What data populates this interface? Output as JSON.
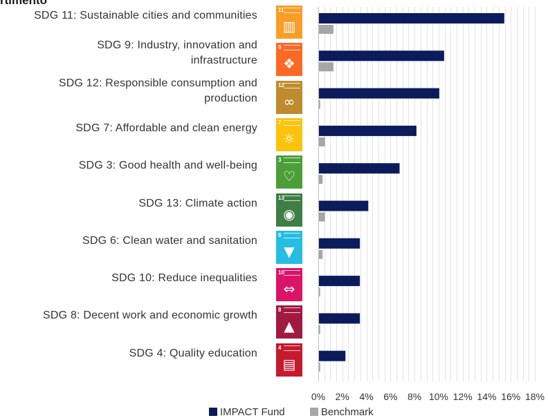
{
  "title": "rtimento",
  "chart_data": {
    "type": "bar",
    "orientation": "horizontal",
    "categories": [
      {
        "line1": "SDG 11: Sustainable cities and communities",
        "line2": ""
      },
      {
        "line1": "SDG 9: Industry, innovation and",
        "line2": "infrastructure"
      },
      {
        "line1": "SDG 12: Responsible consumption and",
        "line2": "production"
      },
      {
        "line1": "SDG 7: Affordable and clean energy",
        "line2": ""
      },
      {
        "line1": "SDG 3: Good health and well-being",
        "line2": ""
      },
      {
        "line1": "SDG 13: Climate action",
        "line2": ""
      },
      {
        "line1": "SDG 6: Clean water and sanitation",
        "line2": ""
      },
      {
        "line1": "SDG 10: Reduce inequalities",
        "line2": ""
      },
      {
        "line1": "SDG 8: Decent work and economic growth",
        "line2": ""
      },
      {
        "line1": "SDG 4: Quality education",
        "line2": ""
      }
    ],
    "series": [
      {
        "name": "IMPACT Fund",
        "color": "#0b1b5c",
        "values": [
          15.4,
          10.4,
          10.0,
          8.1,
          6.7,
          4.1,
          3.4,
          3.4,
          3.4,
          2.2
        ]
      },
      {
        "name": "Benchmark",
        "color": "#a6a6a6",
        "values": [
          1.2,
          1.2,
          0.1,
          0.5,
          0.3,
          0.5,
          0.3,
          0.1,
          0.1,
          0.1
        ]
      }
    ],
    "xlim": [
      0,
      18
    ],
    "x_ticks": [
      "0%",
      "2%",
      "4%",
      "6%",
      "8%",
      "10%",
      "12%",
      "14%",
      "16%",
      "18%"
    ],
    "grid": "vertical minor lines every 0.5%",
    "legend": "bottom"
  },
  "sdg_icons": [
    {
      "number": "11",
      "icon": "city-buildings-icon",
      "color": "#f99d26",
      "glyph": "▥"
    },
    {
      "number": "9",
      "icon": "cubes-infrastructure-icon",
      "color": "#fd6925",
      "glyph": "❖"
    },
    {
      "number": "12",
      "icon": "infinity-loop-icon",
      "color": "#bf8b2e",
      "glyph": "∞"
    },
    {
      "number": "7",
      "icon": "sun-power-icon",
      "color": "#fcc30b",
      "glyph": "☼"
    },
    {
      "number": "3",
      "icon": "heartbeat-icon",
      "color": "#4c9f38",
      "glyph": "♡"
    },
    {
      "number": "13",
      "icon": "eye-globe-icon",
      "color": "#3f7e44",
      "glyph": "◉"
    },
    {
      "number": "6",
      "icon": "water-glass-icon",
      "color": "#26bde2",
      "glyph": "▼"
    },
    {
      "number": "10",
      "icon": "equality-arrows-icon",
      "color": "#dd1367",
      "glyph": "⇔"
    },
    {
      "number": "8",
      "icon": "growth-chart-icon",
      "color": "#a21942",
      "glyph": "▲"
    },
    {
      "number": "4",
      "icon": "open-book-icon",
      "color": "#c5192d",
      "glyph": "▤"
    }
  ]
}
